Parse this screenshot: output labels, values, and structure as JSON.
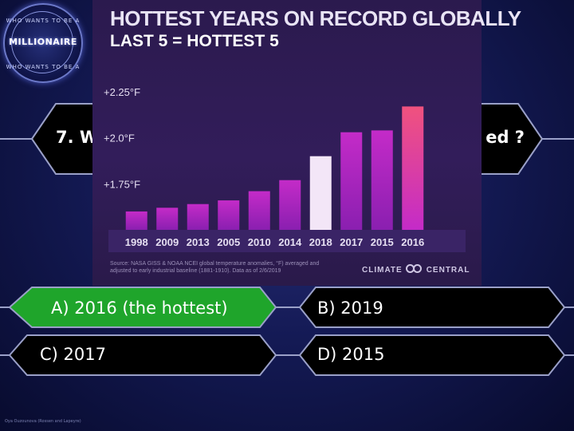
{
  "logo": {
    "top_text": "WHO WANTS TO BE A",
    "main_text": "MILLIONAIRE",
    "bottom_text": "WHO WANTS TO BE A"
  },
  "question": {
    "visible_left": "7. W",
    "visible_right": "ed ?"
  },
  "answers": {
    "a": "A) 2016 (the hottest)",
    "b": "B) 2019",
    "c": "C) 2017",
    "d": "D) 2015"
  },
  "footer": "Oya Ouzounova (Rossen and Lapeyre)",
  "colors": {
    "selected_answer": "#1fa52b",
    "answer_border": "#9aa0c8",
    "bar_main": "#c42bc8",
    "bar_highlight": "#f3e6f7",
    "bar_top": "#f0527e"
  },
  "chart_data": {
    "type": "bar",
    "title": "HOTTEST YEARS ON RECORD GLOBALLY",
    "subtitle": "LAST 5 = HOTTEST 5",
    "categories": [
      "1998",
      "2009",
      "2013",
      "2005",
      "2010",
      "2014",
      "2018",
      "2017",
      "2015",
      "2016"
    ],
    "values": [
      1.6,
      1.62,
      1.64,
      1.66,
      1.71,
      1.77,
      1.9,
      2.03,
      2.04,
      2.17
    ],
    "y_tick_labels": [
      "+2.25°F",
      "+2.0°F",
      "+1.75°F"
    ],
    "y_ticks": [
      2.25,
      2.0,
      1.75
    ],
    "ylim": [
      1.5,
      2.28
    ],
    "highlight_category": "2018",
    "source": "Source: NASA GISS & NOAA NCEI global temperature anomalies, °F) averaged and adjusted to early industrial baseline (1881-1910). Data as of 2/6/2019",
    "brand_left": "CLIMATE",
    "brand_right": "CENTRAL"
  }
}
